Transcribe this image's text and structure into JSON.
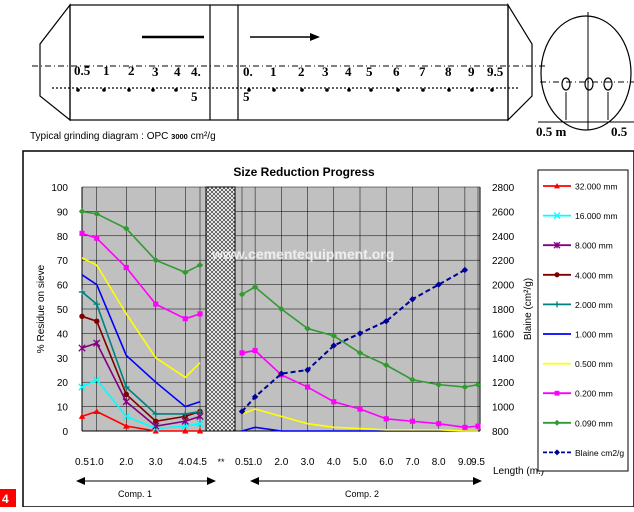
{
  "mill_diagram": {
    "caption_prefix": "Typical grinding diagram : OPC ",
    "caption_value": "3000",
    "caption_unit": " cm²/g",
    "comp1_points": [
      "0.5",
      "1",
      "2",
      "3",
      "4",
      "4.",
      "5"
    ],
    "comp2_points": [
      "0.",
      "5",
      "1",
      "2",
      "3",
      "4",
      "5",
      "6",
      "7",
      "8",
      "9",
      "9.5"
    ],
    "end_view_left": "0.5 m",
    "end_view_right": "0.5",
    "colors": {
      "line": "#000000"
    }
  },
  "watermark": "www.cementequipment.org",
  "page_number": "4",
  "chart_data": {
    "type": "line",
    "title": "Size Reduction Progress",
    "ylabel": "% Residue on sieve",
    "y2label": "Blaine (cm²/g)",
    "xlabel": "Length (m.)",
    "ylim": [
      0,
      100
    ],
    "yticks": [
      "0",
      "10",
      "20",
      "30",
      "40",
      "50",
      "60",
      "70",
      "80",
      "90",
      "100"
    ],
    "y2lim": [
      800,
      2800
    ],
    "y2ticks": [
      "800",
      "1000",
      "1200",
      "1400",
      "1600",
      "1800",
      "2000",
      "2200",
      "2400",
      "2600",
      "2800"
    ],
    "grid": true,
    "legend_position": "right",
    "separator_label": "**",
    "compartments": [
      {
        "name": "Comp. 1",
        "x": [
          "0.5",
          "1.0",
          "2.0",
          "3.0",
          "4.0",
          "4.5"
        ]
      },
      {
        "name": "Comp. 2",
        "x": [
          "0.5",
          "1.0",
          "2.0",
          "3.0",
          "4.0",
          "5.0",
          "6.0",
          "7.0",
          "8.0",
          "9.0",
          "9.5"
        ]
      }
    ],
    "series": [
      {
        "name": "32.000 mm",
        "color": "#ff0000",
        "marker": "triangle",
        "axis": "left",
        "comp1": [
          6,
          8,
          2,
          0,
          0,
          0
        ],
        "comp2": []
      },
      {
        "name": "16.000 mm",
        "color": "#00ffff",
        "marker": "cross",
        "axis": "left",
        "comp1": [
          18,
          21,
          6,
          1,
          2,
          3
        ],
        "comp2": []
      },
      {
        "name": "8.000 mm",
        "color": "#800080",
        "marker": "star",
        "axis": "left",
        "comp1": [
          34,
          36,
          12,
          2,
          4,
          6
        ],
        "comp2": []
      },
      {
        "name": "4.000 mm",
        "color": "#800000",
        "marker": "circle",
        "axis": "left",
        "comp1": [
          47,
          45,
          15,
          4,
          6,
          8
        ],
        "comp2": []
      },
      {
        "name": "2.000 mm",
        "color": "#008080",
        "marker": "plus",
        "axis": "left",
        "comp1": [
          57,
          52,
          18,
          7,
          7,
          8
        ],
        "comp2": []
      },
      {
        "name": "1.000 mm",
        "color": "#0000ff",
        "marker": "dash",
        "axis": "left",
        "comp1": [
          64,
          60,
          31,
          20,
          10,
          12
        ],
        "comp2": [
          0,
          1.5,
          0,
          0,
          0,
          0,
          0,
          0,
          0,
          0,
          0
        ]
      },
      {
        "name": "0.500 mm",
        "color": "#ffff00",
        "marker": "dash",
        "axis": "left",
        "comp1": [
          71,
          68,
          48,
          30,
          22,
          28
        ],
        "comp2": [
          7,
          9,
          6,
          3,
          1.5,
          1,
          0.5,
          0.5,
          0.5,
          0,
          0
        ]
      },
      {
        "name": "0.200 mm",
        "color": "#ff00ff",
        "marker": "square",
        "axis": "left",
        "comp1": [
          81,
          79,
          67,
          52,
          46,
          48
        ],
        "comp2": [
          32,
          33,
          23,
          18,
          12,
          9,
          5,
          4,
          3,
          1.5,
          2
        ]
      },
      {
        "name": "0.090 mm",
        "color": "#339933",
        "marker": "diamond",
        "axis": "left",
        "comp1": [
          90,
          89,
          83,
          70,
          65,
          68
        ],
        "comp2": [
          56,
          59,
          50,
          42,
          39,
          32,
          27,
          21,
          19,
          18,
          19
        ]
      },
      {
        "name": "Blaine cm2/g",
        "color": "#000099",
        "marker": "diamond",
        "axis": "right",
        "dashed": true,
        "comp1": [],
        "comp2": [
          960,
          1080,
          1270,
          1300,
          1500,
          1600,
          1700,
          1880,
          2000,
          2120,
          null
        ]
      }
    ]
  }
}
